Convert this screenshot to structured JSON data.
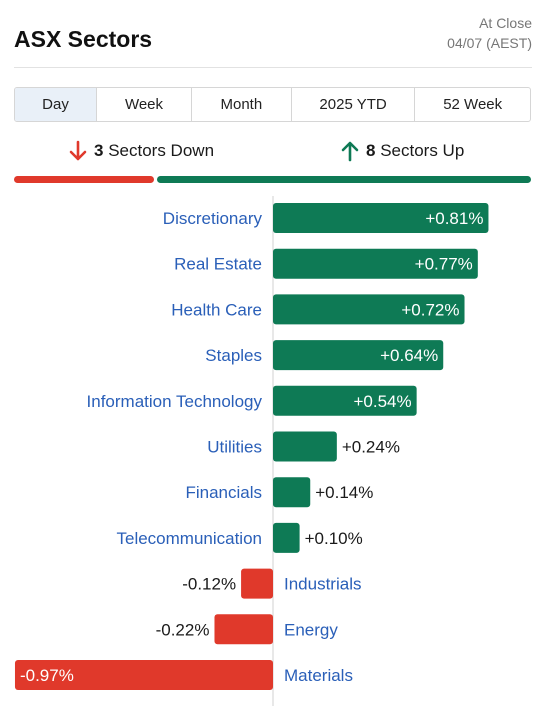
{
  "header": {
    "title": "ASX Sectors",
    "as_of_line1": "At Close",
    "as_of_line2": "04/07 (AEST)"
  },
  "tabs": [
    {
      "label": "Day",
      "active": true
    },
    {
      "label": "Week",
      "active": false
    },
    {
      "label": "Month",
      "active": false
    },
    {
      "label": "2025 YTD",
      "active": false
    },
    {
      "label": "52 Week",
      "active": false
    }
  ],
  "summary": {
    "down_count": "3",
    "down_text": "Sectors Down",
    "up_count": "8",
    "up_text": "Sectors Up",
    "down_color": "#e0392b",
    "up_color": "#0e7a55"
  },
  "chart_data": {
    "type": "bar",
    "orientation": "horizontal",
    "categories": [
      "Discretionary",
      "Real Estate",
      "Health Care",
      "Staples",
      "Information Technology",
      "Utilities",
      "Financials",
      "Telecommunication",
      "Industrials",
      "Energy",
      "Materials"
    ],
    "values": [
      0.81,
      0.77,
      0.72,
      0.64,
      0.54,
      0.24,
      0.14,
      0.1,
      -0.12,
      -0.22,
      -0.97
    ],
    "value_labels": [
      "+0.81%",
      "+0.77%",
      "+0.72%",
      "+0.64%",
      "+0.54%",
      "+0.24%",
      "+0.14%",
      "+0.10%",
      "-0.12%",
      "-0.22%",
      "-0.97%"
    ],
    "positive_color": "#0e7a55",
    "negative_color": "#e0392b",
    "category_color": "#2a5fb8",
    "unit": "%"
  }
}
